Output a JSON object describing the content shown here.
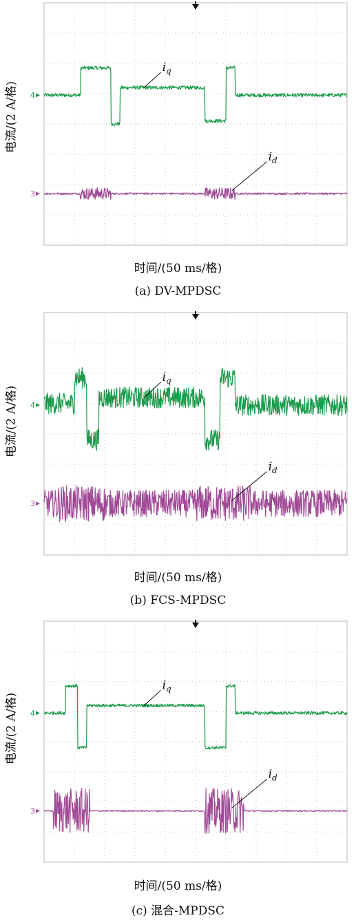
{
  "panels": [
    {
      "ylabel": "电流/(2 A/格)",
      "xlabel": "时间/(50 ms/格)",
      "caption": "(a) DV-MPDSC",
      "iq_label": "i",
      "iq_sub": "q",
      "id_label": "i",
      "id_sub": "d",
      "ch4_marker": "4",
      "ch3_marker": "3"
    },
    {
      "ylabel": "电流/(2 A/格)",
      "xlabel": "时间/(50 ms/格)",
      "caption": "(b) FCS-MPDSC",
      "iq_label": "i",
      "iq_sub": "q",
      "id_label": "i",
      "id_sub": "d",
      "ch4_marker": "4",
      "ch3_marker": "3"
    },
    {
      "ylabel": "电流/(2 A/格)",
      "xlabel": "时间/(50 ms/格)",
      "caption": "(c) 混合-MPDSC",
      "iq_label": "i",
      "iq_sub": "q",
      "id_label": "i",
      "id_sub": "d",
      "ch4_marker": "4",
      "ch3_marker": "3"
    }
  ],
  "colors": {
    "iq": "#1a9a4a",
    "id": "#a04a96",
    "grid": "#c8c8c8",
    "frame": "#d0d0d0"
  },
  "chart_data": [
    {
      "type": "line",
      "title": "",
      "xlabel": "时间/(50 ms/格)",
      "ylabel": "电流/(2 A/格)",
      "xlim": [
        0,
        10
      ],
      "ylim": [
        -4,
        4
      ],
      "grid": true,
      "x_units": "div",
      "y_units": "div",
      "series": [
        {
          "name": "iq",
          "noise": 0.06,
          "x": [
            0,
            1.2,
            1.2,
            2.2,
            2.2,
            2.5,
            2.5,
            5.3,
            5.3,
            6.0,
            6.0,
            6.3,
            6.3,
            10
          ],
          "y": [
            0.95,
            0.95,
            1.85,
            1.85,
            0.0,
            0.0,
            1.2,
            1.2,
            0.1,
            0.1,
            1.85,
            1.85,
            0.95,
            0.95
          ]
        },
        {
          "name": "id",
          "noise": 0.03,
          "bursts": [
            [
              1.2,
              2.2
            ],
            [
              5.3,
              6.3
            ]
          ],
          "burst_amp": 0.2,
          "x": [
            0,
            10
          ],
          "y": [
            -2.3,
            -2.3
          ]
        }
      ]
    },
    {
      "type": "line",
      "title": "",
      "xlabel": "时间/(50 ms/格)",
      "ylabel": "电流/(2 A/格)",
      "xlim": [
        0,
        10
      ],
      "ylim": [
        -4,
        4
      ],
      "grid": true,
      "x_units": "div",
      "y_units": "div",
      "series": [
        {
          "name": "iq",
          "noise": 0.35,
          "x": [
            0,
            1.0,
            1.0,
            1.4,
            1.4,
            1.8,
            1.8,
            5.3,
            5.3,
            5.8,
            5.8,
            6.3,
            6.3,
            10
          ],
          "y": [
            1.0,
            1.0,
            1.85,
            1.85,
            -0.2,
            -0.2,
            1.2,
            1.2,
            -0.2,
            -0.2,
            1.85,
            1.85,
            0.95,
            0.95
          ]
        },
        {
          "name": "id",
          "noise": 0.45,
          "bursts": [
            [
              0.4,
              2.0
            ],
            [
              5.0,
              6.8
            ]
          ],
          "burst_amp": 0.6,
          "x": [
            0,
            10
          ],
          "y": [
            -2.3,
            -2.3
          ]
        }
      ]
    },
    {
      "type": "line",
      "title": "",
      "xlabel": "时间/(50 ms/格)",
      "ylabel": "电流/(2 A/格)",
      "xlim": [
        0,
        10
      ],
      "ylim": [
        -4,
        4
      ],
      "grid": true,
      "x_units": "div",
      "y_units": "div",
      "series": [
        {
          "name": "iq",
          "noise": 0.05,
          "x": [
            0,
            0.7,
            0.7,
            1.1,
            1.1,
            1.4,
            1.4,
            5.3,
            5.3,
            6.0,
            6.0,
            6.3,
            6.3,
            10
          ],
          "y": [
            0.95,
            0.95,
            1.85,
            1.85,
            -0.2,
            -0.2,
            1.2,
            1.2,
            -0.2,
            -0.2,
            1.85,
            1.85,
            0.95,
            0.95
          ]
        },
        {
          "name": "id",
          "noise": 0.02,
          "bursts": [
            [
              0.3,
              1.5
            ],
            [
              5.3,
              6.6
            ]
          ],
          "burst_amp": 0.75,
          "x": [
            0,
            10
          ],
          "y": [
            -2.3,
            -2.3
          ]
        }
      ]
    }
  ]
}
